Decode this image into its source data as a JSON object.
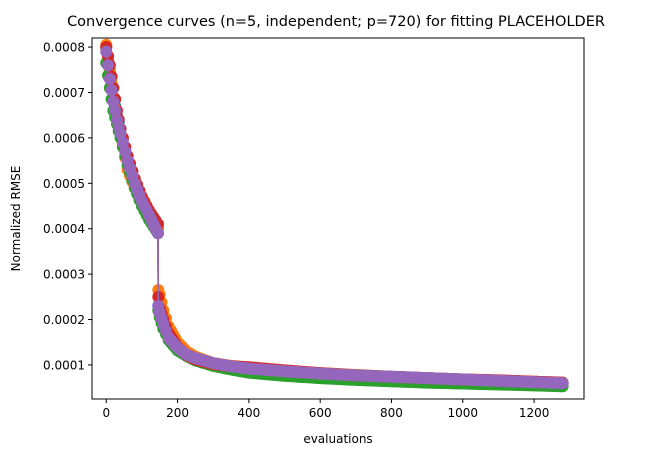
{
  "chart_data": {
    "type": "line",
    "title": "Convergence curves (n=5, independent; p=720) for fitting PLACEHOLDER",
    "xlabel": "evaluations",
    "ylabel": "Normalized RMSE",
    "xlim": [
      -40,
      1340
    ],
    "ylim": [
      2.5e-05,
      0.00082
    ],
    "xticks": [
      0,
      200,
      400,
      600,
      800,
      1000,
      1200
    ],
    "xtick_labels": [
      "0",
      "200",
      "400",
      "600",
      "800",
      "1000",
      "1200"
    ],
    "yticks": [
      0.0001,
      0.0002,
      0.0003,
      0.0004,
      0.0005,
      0.0006,
      0.0007,
      0.0008
    ],
    "ytick_labels": [
      "0.0001",
      "0.0002",
      "0.0003",
      "0.0004",
      "0.0005",
      "0.0006",
      "0.0007",
      "0.0008"
    ],
    "grid": false,
    "legend": "none",
    "markers": true,
    "series": [
      {
        "color": "#1f77b4",
        "x": [
          0,
          10,
          20,
          30,
          40,
          60,
          80,
          100,
          120,
          145,
          146,
          150,
          160,
          175,
          200,
          225,
          250,
          300,
          350,
          400,
          500,
          600,
          700,
          800,
          900,
          1000,
          1100,
          1200,
          1280
        ],
        "y": [
          0.0008,
          0.000745,
          0.00069,
          0.00065,
          0.00062,
          0.00055,
          0.0005,
          0.00046,
          0.00043,
          0.0004,
          0.00023,
          0.000215,
          0.00019,
          0.000165,
          0.00014,
          0.000125,
          0.000115,
          0.000103,
          9.7e-05,
          9.3e-05,
          8.5e-05,
          8e-05,
          7.6e-05,
          7.3e-05,
          7e-05,
          6.7e-05,
          6.5e-05,
          6.2e-05,
          5.9e-05
        ]
      },
      {
        "color": "#ff7f0e",
        "x": [
          0,
          10,
          20,
          30,
          40,
          60,
          80,
          100,
          120,
          145,
          146,
          150,
          160,
          175,
          200,
          225,
          250,
          300,
          350,
          400,
          500,
          600,
          700,
          800,
          900,
          1000,
          1100,
          1200,
          1280
        ],
        "y": [
          0.000805,
          0.00075,
          0.00069,
          0.00064,
          0.00061,
          0.00053,
          0.00049,
          0.00046,
          0.00043,
          0.0004,
          0.000265,
          0.000255,
          0.00022,
          0.000185,
          0.00015,
          0.00013,
          0.000118,
          0.000104,
          9.8e-05,
          9.4e-05,
          8.7e-05,
          8.2e-05,
          7.8e-05,
          7.4e-05,
          7.1e-05,
          6.8e-05,
          6.6e-05,
          6.3e-05,
          6.1e-05
        ]
      },
      {
        "color": "#2ca02c",
        "x": [
          0,
          10,
          20,
          30,
          40,
          60,
          80,
          100,
          120,
          145,
          146,
          150,
          160,
          175,
          200,
          225,
          250,
          300,
          350,
          400,
          500,
          600,
          700,
          800,
          900,
          1000,
          1100,
          1200,
          1280
        ],
        "y": [
          0.000765,
          0.00071,
          0.00066,
          0.00063,
          0.0006,
          0.00054,
          0.00049,
          0.00045,
          0.00042,
          0.00039,
          0.00022,
          0.000205,
          0.00018,
          0.000155,
          0.000132,
          0.00012,
          0.00011,
          9.8e-05,
          9e-05,
          8.3e-05,
          7.6e-05,
          7.1e-05,
          6.7e-05,
          6.4e-05,
          6.1e-05,
          5.9e-05,
          5.7e-05,
          5.5e-05,
          5.3e-05
        ]
      },
      {
        "color": "#d62728",
        "x": [
          0,
          10,
          20,
          30,
          40,
          60,
          80,
          100,
          120,
          145,
          146,
          150,
          160,
          175,
          200,
          225,
          250,
          300,
          350,
          400,
          500,
          600,
          700,
          800,
          900,
          1000,
          1100,
          1200,
          1280
        ],
        "y": [
          0.0008,
          0.00076,
          0.00071,
          0.00066,
          0.00062,
          0.00056,
          0.00051,
          0.00047,
          0.00044,
          0.00041,
          0.00025,
          0.000225,
          0.0002,
          0.00017,
          0.00014,
          0.000122,
          0.000112,
          0.000102,
          9.7e-05,
          9.5e-05,
          8.8e-05,
          8.2e-05,
          7.7e-05,
          7.4e-05,
          7.1e-05,
          6.8e-05,
          6.6e-05,
          6.3e-05,
          6.1e-05
        ]
      },
      {
        "color": "#9467bd",
        "x": [
          0,
          10,
          20,
          30,
          40,
          60,
          80,
          100,
          120,
          145,
          146,
          150,
          160,
          175,
          200,
          225,
          250,
          300,
          350,
          400,
          500,
          600,
          700,
          800,
          900,
          1000,
          1100,
          1200,
          1280
        ],
        "y": [
          0.00079,
          0.00073,
          0.00068,
          0.00064,
          0.00061,
          0.00055,
          0.0005,
          0.00046,
          0.00043,
          0.00039,
          0.00023,
          0.000215,
          0.00019,
          0.00016,
          0.000138,
          0.000123,
          0.000115,
          0.000104,
          9.7e-05,
          9.2e-05,
          8.6e-05,
          8.1e-05,
          7.7e-05,
          7.4e-05,
          7.1e-05,
          6.8e-05,
          6.5e-05,
          6.2e-05,
          6e-05
        ]
      }
    ]
  }
}
